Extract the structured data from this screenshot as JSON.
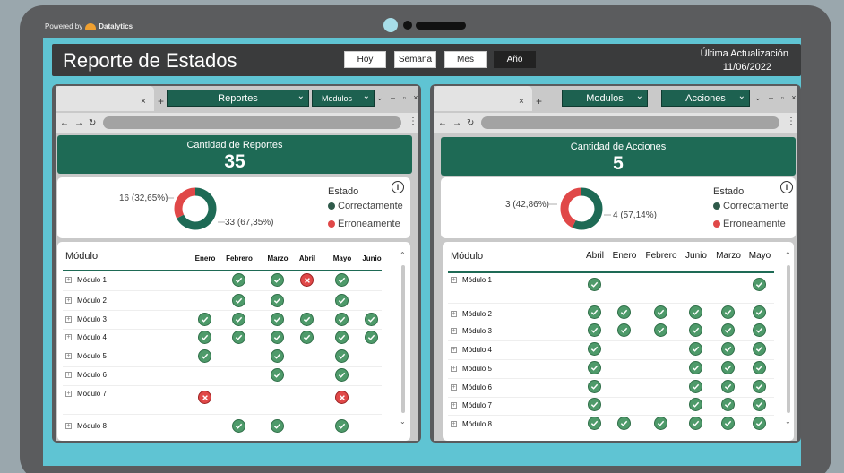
{
  "branding": {
    "powered_by": "Powered by",
    "brand": "Datalytics"
  },
  "header": {
    "title": "Reporte de Estados",
    "periods": [
      "Hoy",
      "Semana",
      "Mes",
      "Año"
    ],
    "active_period": "Año",
    "update_label": "Última Actualización",
    "update_date": "11/06/2022"
  },
  "colors": {
    "ok": "#4e9a6a",
    "error": "#e04848",
    "brand_green": "#1e6a55",
    "screen": "#5fc4d3"
  },
  "left": {
    "dropdown1": "Reportes",
    "dropdown2": "Modulos",
    "kpi_label": "Cantidad de Reportes",
    "kpi_value": "35",
    "donut": {
      "ok_value": 33,
      "err_value": 16,
      "ok_label": "33 (67,35%)",
      "err_label": "16 (32,65%)"
    },
    "legend": {
      "title": "Estado",
      "ok": "Correctamente",
      "err": "Erroneamente"
    },
    "table": {
      "header": "Módulo",
      "months": [
        "Enero",
        "Febrero",
        "Marzo",
        "Abril",
        "Mayo",
        "Junio"
      ],
      "rows": [
        {
          "label": "Módulo 1",
          "cells": [
            "",
            "ok",
            "ok",
            "err",
            "ok",
            ""
          ]
        },
        {
          "label": "Módulo 2",
          "cells": [
            "",
            "ok",
            "ok",
            "",
            "ok",
            ""
          ]
        },
        {
          "label": "Módulo 3",
          "cells": [
            "ok",
            "ok",
            "ok",
            "ok",
            "ok",
            "ok"
          ]
        },
        {
          "label": "Módulo 4",
          "cells": [
            "ok",
            "ok",
            "ok",
            "ok",
            "ok",
            "ok"
          ]
        },
        {
          "label": "Módulo 5",
          "cells": [
            "ok",
            "",
            "ok",
            "",
            "ok",
            ""
          ]
        },
        {
          "label": "Módulo 6",
          "cells": [
            "",
            "",
            "ok",
            "",
            "ok",
            ""
          ]
        },
        {
          "label": "Módulo 7",
          "cells": [
            "err",
            "",
            "",
            "",
            "err",
            ""
          ]
        },
        {
          "label": "Módulo 8",
          "cells": [
            "",
            "ok",
            "ok",
            "",
            "ok",
            ""
          ]
        }
      ]
    }
  },
  "right": {
    "dropdown1": "Modulos",
    "dropdown2": "Acciones",
    "kpi_label": "Cantidad de Acciones",
    "kpi_value": "5",
    "donut": {
      "ok_value": 4,
      "err_value": 3,
      "ok_label": "4 (57,14%)",
      "err_label": "3 (42,86%)"
    },
    "legend": {
      "title": "Estado",
      "ok": "Correctamente",
      "err": "Erroneamente"
    },
    "table": {
      "header": "Módulo",
      "months": [
        "Abril",
        "Enero",
        "Febrero",
        "Junio",
        "Marzo",
        "Mayo"
      ],
      "rows": [
        {
          "label": "Módulo 1",
          "cells": [
            "ok",
            "",
            "",
            "",
            "",
            "ok"
          ]
        },
        {
          "label": "Módulo 2",
          "cells": [
            "ok",
            "ok",
            "ok",
            "ok",
            "ok",
            "ok"
          ]
        },
        {
          "label": "Módulo 3",
          "cells": [
            "ok",
            "ok",
            "ok",
            "ok",
            "ok",
            "ok"
          ]
        },
        {
          "label": "Módulo 4",
          "cells": [
            "ok",
            "",
            "",
            "ok",
            "ok",
            "ok"
          ]
        },
        {
          "label": "Módulo 5",
          "cells": [
            "ok",
            "",
            "",
            "ok",
            "ok",
            "ok"
          ]
        },
        {
          "label": "Módulo 6",
          "cells": [
            "ok",
            "",
            "",
            "ok",
            "ok",
            "ok"
          ]
        },
        {
          "label": "Módulo 7",
          "cells": [
            "ok",
            "",
            "",
            "ok",
            "ok",
            "ok"
          ]
        },
        {
          "label": "Módulo 8",
          "cells": [
            "ok",
            "ok",
            "ok",
            "ok",
            "ok",
            "ok"
          ]
        }
      ]
    }
  }
}
